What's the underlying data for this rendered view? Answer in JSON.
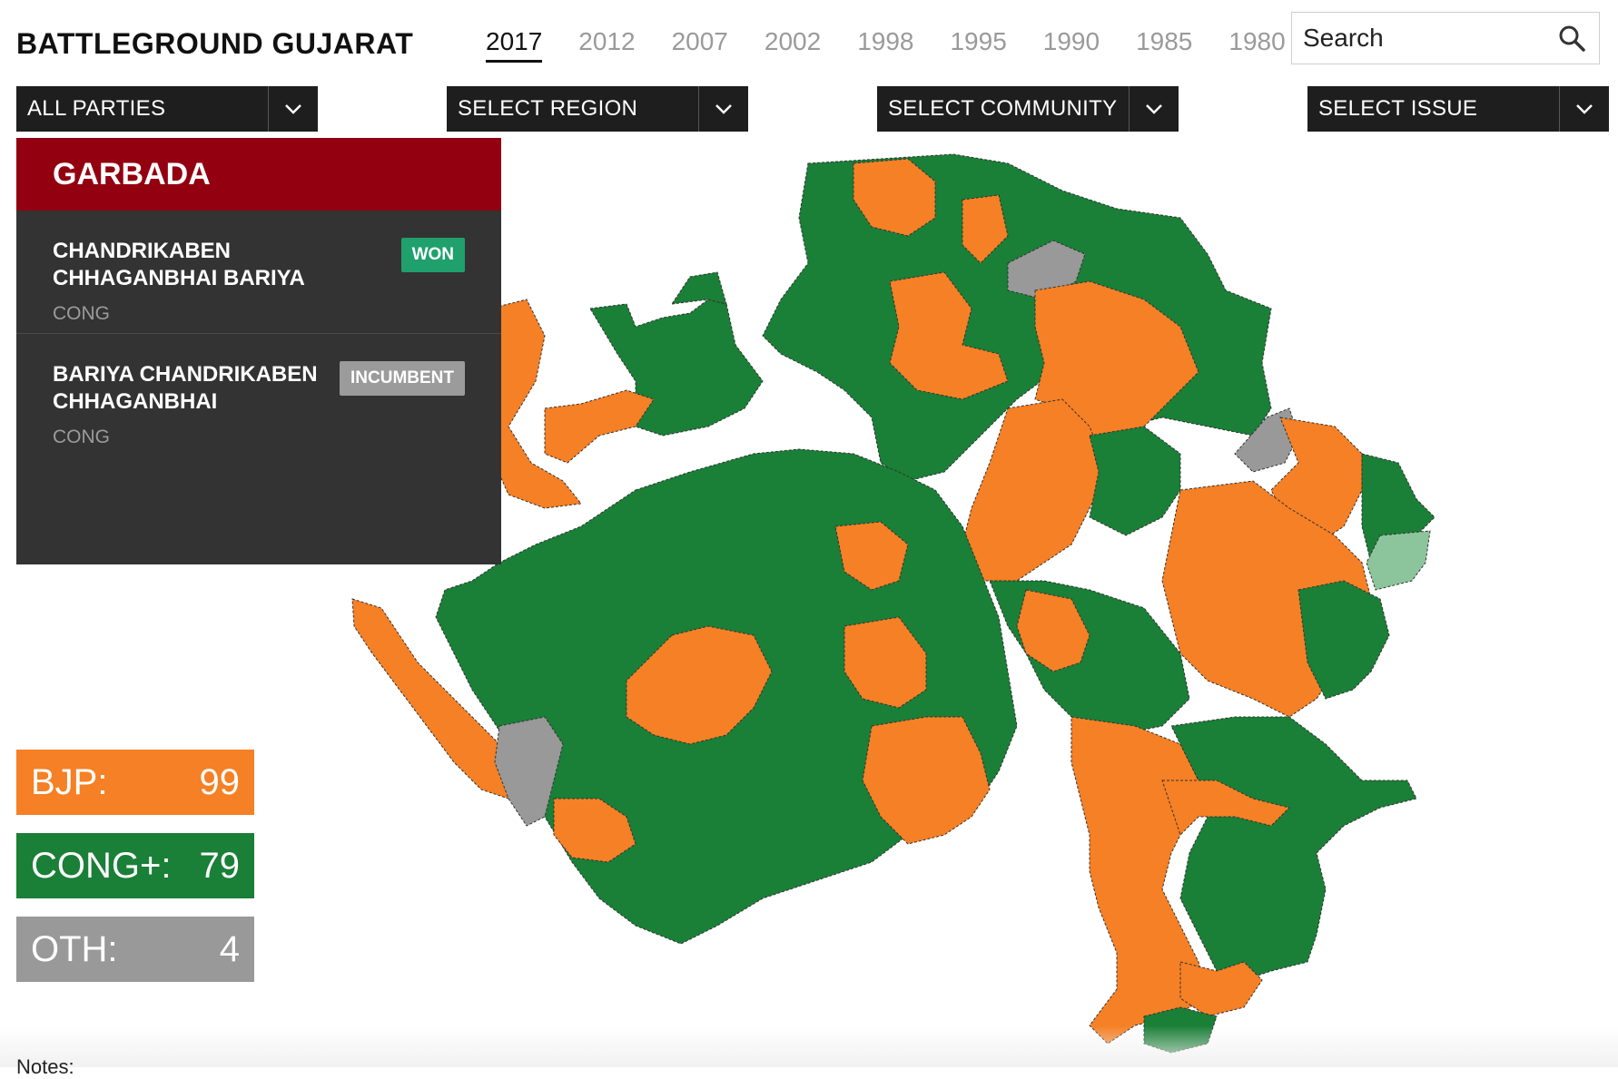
{
  "header": {
    "title": "BATTLEGROUND GUJARAT",
    "years": [
      "2017",
      "2012",
      "2007",
      "2002",
      "1998",
      "1995",
      "1990",
      "1985",
      "1980"
    ],
    "active_year": "2017",
    "search_placeholder": "Search"
  },
  "filters": [
    {
      "label": "ALL PARTIES"
    },
    {
      "label": "SELECT REGION"
    },
    {
      "label": "SELECT COMMUNITY"
    },
    {
      "label": "SELECT ISSUE"
    }
  ],
  "constituency": {
    "name": "GARBADA",
    "candidates": [
      {
        "name": "CHANDRIKABEN CHHAGANBHAI BARIYA",
        "party": "CONG",
        "badge": "WON"
      },
      {
        "name": "BARIYA CHANDRIKABEN CHHAGANBHAI",
        "party": "CONG",
        "badge": "INCUMBENT"
      }
    ]
  },
  "tally": [
    {
      "label": "BJP:",
      "value": "99",
      "color": "#f58025"
    },
    {
      "label": "CONG+:",
      "value": "79",
      "color": "#1a7f37"
    },
    {
      "label": "OTH:",
      "value": "4",
      "color": "#999999"
    }
  ],
  "notes_label": "Notes:",
  "colors": {
    "bjp": "#f58025",
    "cong": "#1a7f37",
    "oth": "#999999",
    "highlight": "#8cc59b"
  }
}
